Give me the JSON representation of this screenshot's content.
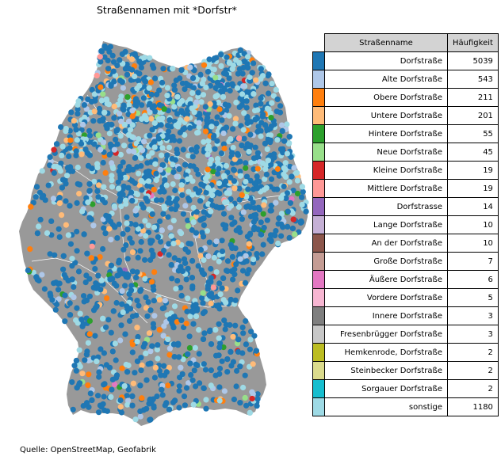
{
  "title": "Straßennamen mit *Dorfstr*",
  "source": "Quelle: OpenStreetMap, Geofabrik",
  "table": {
    "headers": {
      "name": "Straßenname",
      "count": "Häufigkeit"
    },
    "rows": [
      {
        "name": "Dorfstraße",
        "count": "5039",
        "color": "#1f77b4"
      },
      {
        "name": "Alte Dorfstraße",
        "count": "543",
        "color": "#aec7e8"
      },
      {
        "name": "Obere Dorfstraße",
        "count": "211",
        "color": "#ff7f0e"
      },
      {
        "name": "Untere Dorfstraße",
        "count": "201",
        "color": "#ffbb78"
      },
      {
        "name": "Hintere Dorfstraße",
        "count": "55",
        "color": "#2ca02c"
      },
      {
        "name": "Neue Dorfstraße",
        "count": "45",
        "color": "#98df8a"
      },
      {
        "name": "Kleine Dorfstraße",
        "count": "19",
        "color": "#d62728"
      },
      {
        "name": "Mittlere Dorfstraße",
        "count": "19",
        "color": "#ff9896"
      },
      {
        "name": "Dorfstrasse",
        "count": "14",
        "color": "#9467bd"
      },
      {
        "name": "Lange Dorfstraße",
        "count": "10",
        "color": "#c5b0d5"
      },
      {
        "name": "An der Dorfstraße",
        "count": "10",
        "color": "#8c564b"
      },
      {
        "name": "Große Dorfstraße",
        "count": "7",
        "color": "#c49c94"
      },
      {
        "name": "Äußere Dorfstraße",
        "count": "6",
        "color": "#e377c2"
      },
      {
        "name": "Vordere Dorfstraße",
        "count": "5",
        "color": "#f7b6d2"
      },
      {
        "name": "Innere Dorfstraße",
        "count": "3",
        "color": "#7f7f7f"
      },
      {
        "name": "Fresenbrügger Dorfstraße",
        "count": "3",
        "color": "#c7c7c7"
      },
      {
        "name": "Hemkenrode, Dorfstraße",
        "count": "2",
        "color": "#bcbd22"
      },
      {
        "name": "Steinbecker Dorfstraße",
        "count": "2",
        "color": "#dbdb8d"
      },
      {
        "name": "Sorgauer Dorfstraße",
        "count": "2",
        "color": "#17becf"
      },
      {
        "name": "sonstige",
        "count": "1180",
        "color": "#9edae5"
      }
    ]
  },
  "map": {
    "land_color": "#999999",
    "border_color": "#ffffff"
  }
}
